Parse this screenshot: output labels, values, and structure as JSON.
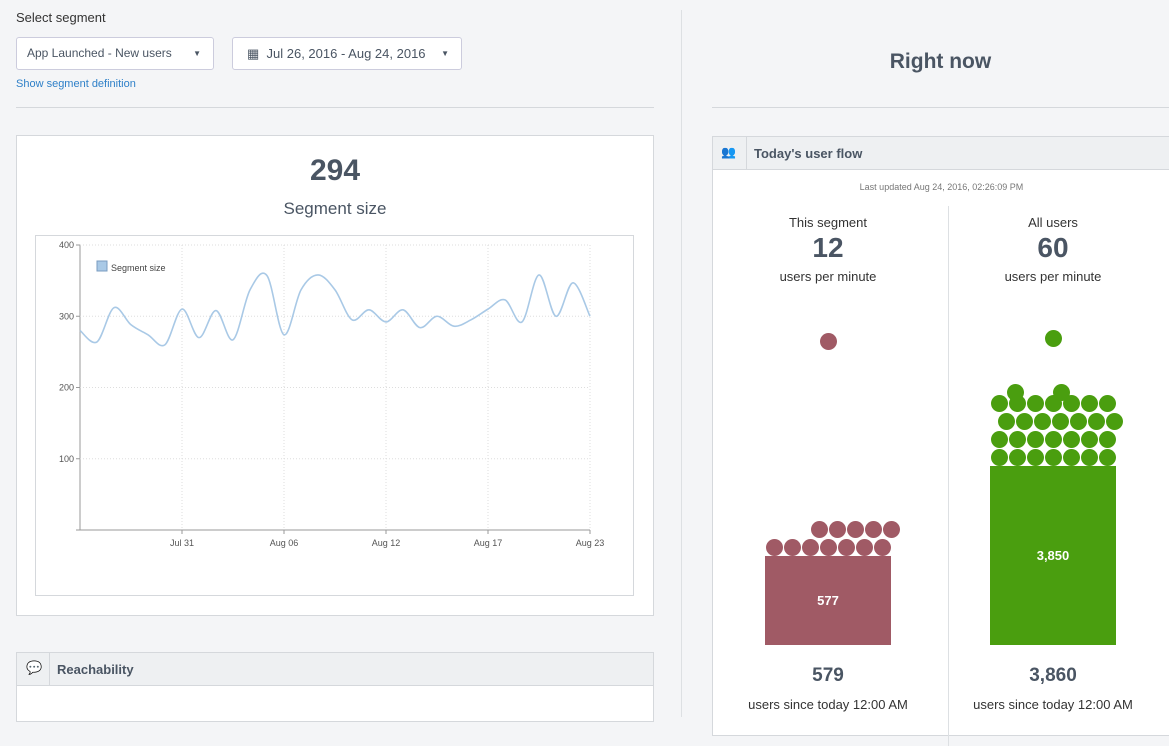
{
  "header": {
    "label": "Select segment",
    "segment": "App Launched - New users",
    "date_range": "Jul 26, 2016 - Aug 24, 2016",
    "link": "Show segment definition"
  },
  "segment_card": {
    "value": "294",
    "label": "Segment size",
    "chart_data": {
      "type": "line",
      "categories": [
        null,
        null,
        null,
        null,
        null,
        null,
        "Jul 31",
        null,
        null,
        null,
        null,
        null,
        "Aug 06",
        null,
        null,
        null,
        null,
        null,
        "Aug 12",
        null,
        null,
        null,
        null,
        null,
        "Aug 17",
        null,
        null,
        null,
        null,
        null,
        "Aug 23"
      ],
      "series": [
        {
          "name": "Segment size",
          "color": "#a9c9e6",
          "values": [
            280,
            264,
            312,
            288,
            274,
            260,
            310,
            270,
            308,
            267,
            337,
            357,
            274,
            337,
            358,
            337,
            295,
            309,
            292,
            309,
            284,
            300,
            286,
            295,
            310,
            323,
            292,
            358,
            300,
            347,
            300
          ]
        }
      ],
      "ylim": [
        0,
        400
      ],
      "yticks": [
        100,
        200,
        300,
        400
      ],
      "grid": true,
      "legend": "top-left"
    }
  },
  "reachability": {
    "title": "Reachability"
  },
  "right": {
    "title": "Right now",
    "panel_title": "Today's user flow",
    "updated": "Last updated Aug 24, 2016, 02:26:09 PM",
    "columns": [
      {
        "name": "This segment",
        "rate": "12",
        "rate_unit": "users per minute",
        "bar": "577",
        "total": "579",
        "total_unit": "users since today 12:00 AM",
        "color": "#a05a65"
      },
      {
        "name": "All users",
        "rate": "60",
        "rate_unit": "users per minute",
        "bar": "3,850",
        "total": "3,860",
        "total_unit": "users since today 12:00 AM",
        "color": "#4a9e0f"
      }
    ]
  }
}
